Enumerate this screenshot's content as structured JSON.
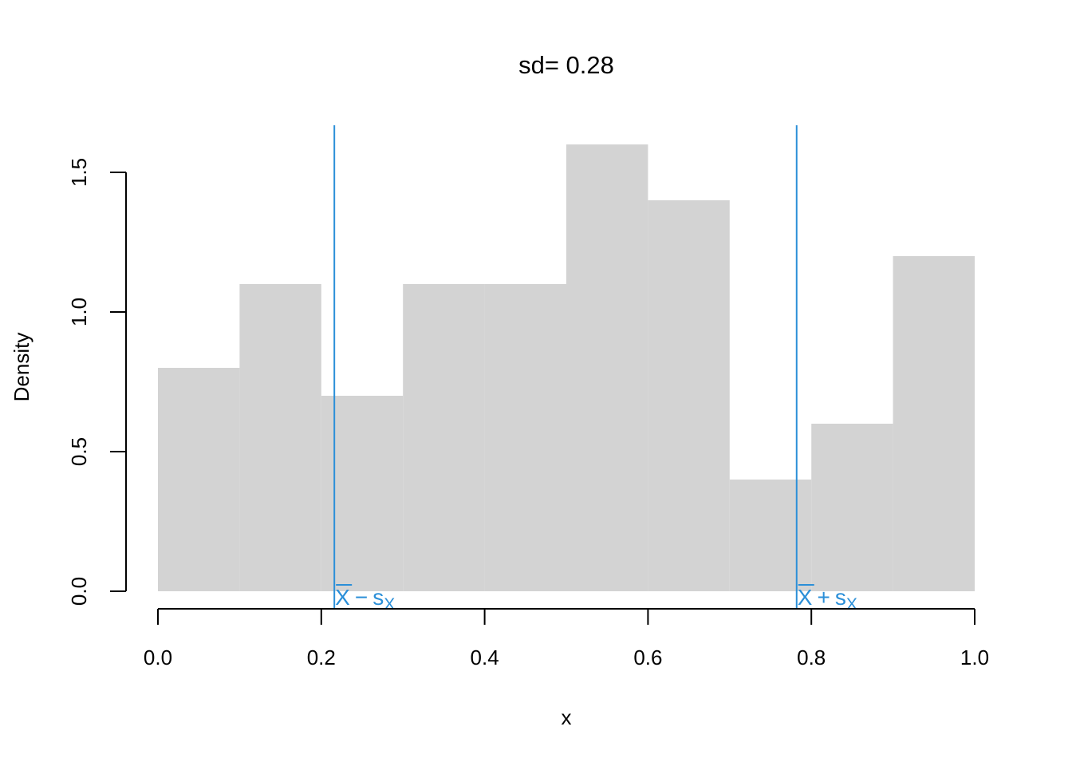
{
  "chart_data": {
    "type": "bar",
    "title": "sd= 0.28",
    "xlabel": "x",
    "ylabel": "Density",
    "xlim": [
      0,
      1
    ],
    "ylim": [
      0,
      1.5
    ],
    "grid": false,
    "bin_edges": [
      0.0,
      0.1,
      0.2,
      0.3,
      0.4,
      0.5,
      0.6,
      0.7,
      0.8,
      0.9,
      1.0
    ],
    "values": [
      0.8,
      1.1,
      0.7,
      1.1,
      1.1,
      1.6,
      1.4,
      0.4,
      0.6,
      1.2
    ],
    "x_ticks": [
      "0.0",
      "0.2",
      "0.4",
      "0.6",
      "0.8",
      "1.0"
    ],
    "y_ticks": [
      "0.0",
      "0.5",
      "1.0",
      "1.5"
    ],
    "bar_color": "#d3d3d3",
    "reference_lines": [
      {
        "x": 0.216,
        "label_main": "X",
        "label_op": "−",
        "label_s": "s",
        "label_sub": "X"
      },
      {
        "x": 0.782,
        "label_main": "X",
        "label_op": "+",
        "label_s": "s",
        "label_sub": "X"
      }
    ],
    "reference_color": "#2b8fd8"
  }
}
